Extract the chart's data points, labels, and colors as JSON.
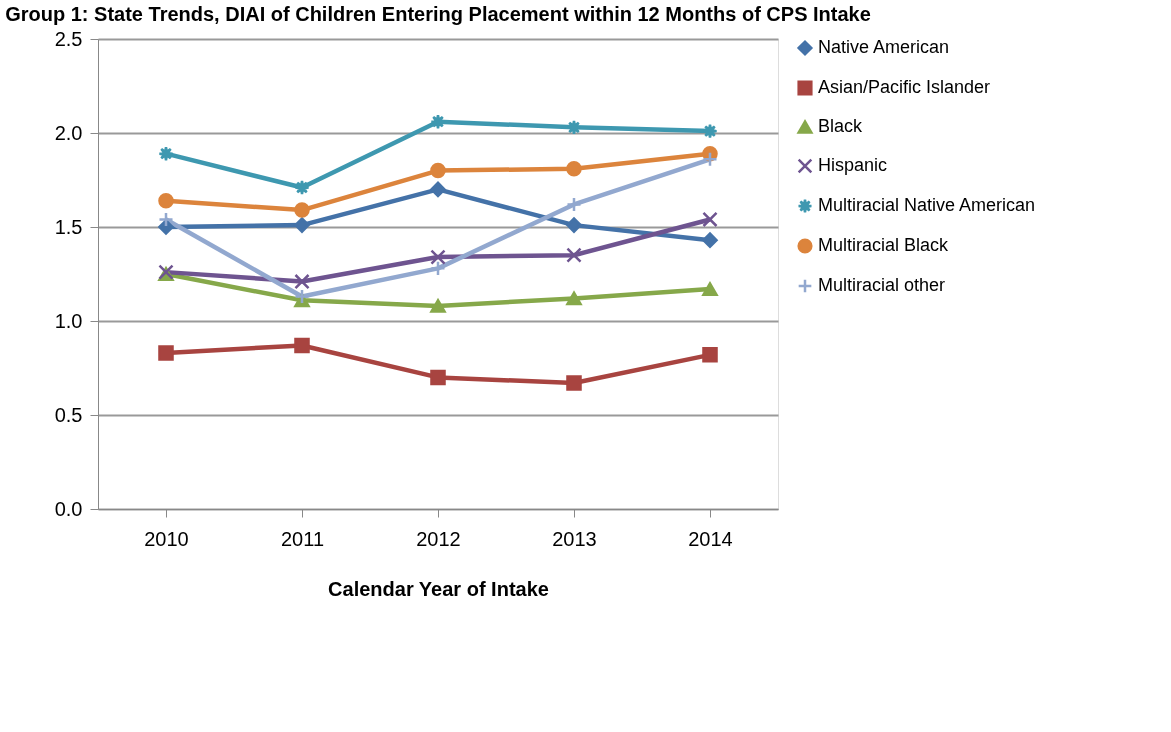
{
  "chart_data": {
    "type": "line",
    "title": "Group 1: State Trends, DIAI of Children Entering Placement within 12 Months of CPS Intake",
    "xlabel": "Calendar Year of Intake",
    "categories": [
      "2010",
      "2011",
      "2012",
      "2013",
      "2014"
    ],
    "series": [
      {
        "name": "Native American",
        "color": "#4472a8",
        "marker": "diamond",
        "values": [
          1.5,
          1.51,
          1.7,
          1.51,
          1.43
        ]
      },
      {
        "name": "Asian/Pacific Islander",
        "color": "#a84440",
        "marker": "square",
        "values": [
          0.83,
          0.87,
          0.7,
          0.67,
          0.82
        ]
      },
      {
        "name": "Black",
        "color": "#86a84a",
        "marker": "triangle",
        "values": [
          1.25,
          1.11,
          1.08,
          1.12,
          1.17
        ]
      },
      {
        "name": "Hispanic",
        "color": "#6e5490",
        "marker": "x",
        "values": [
          1.26,
          1.21,
          1.34,
          1.35,
          1.54
        ]
      },
      {
        "name": "Multiracial Native American",
        "color": "#3e98b0",
        "marker": "star",
        "values": [
          1.89,
          1.71,
          2.06,
          2.03,
          2.01
        ]
      },
      {
        "name": "Multiracial Black",
        "color": "#dc843c",
        "marker": "circle",
        "values": [
          1.64,
          1.59,
          1.8,
          1.81,
          1.89
        ]
      },
      {
        "name": "Multiracial other",
        "color": "#92a8cf",
        "marker": "cross",
        "values": [
          1.54,
          1.13,
          1.28,
          1.62,
          1.86
        ]
      }
    ],
    "ylim": [
      0,
      2.5
    ],
    "yticks": [
      {
        "value": 0,
        "label": "0.0"
      },
      0.5,
      {
        "value": 1,
        "label": "1.0"
      },
      1.5,
      {
        "value": 2,
        "label": "2.0"
      },
      2.5
    ],
    "grid": "y",
    "legend": "right",
    "line_style": "solid"
  }
}
